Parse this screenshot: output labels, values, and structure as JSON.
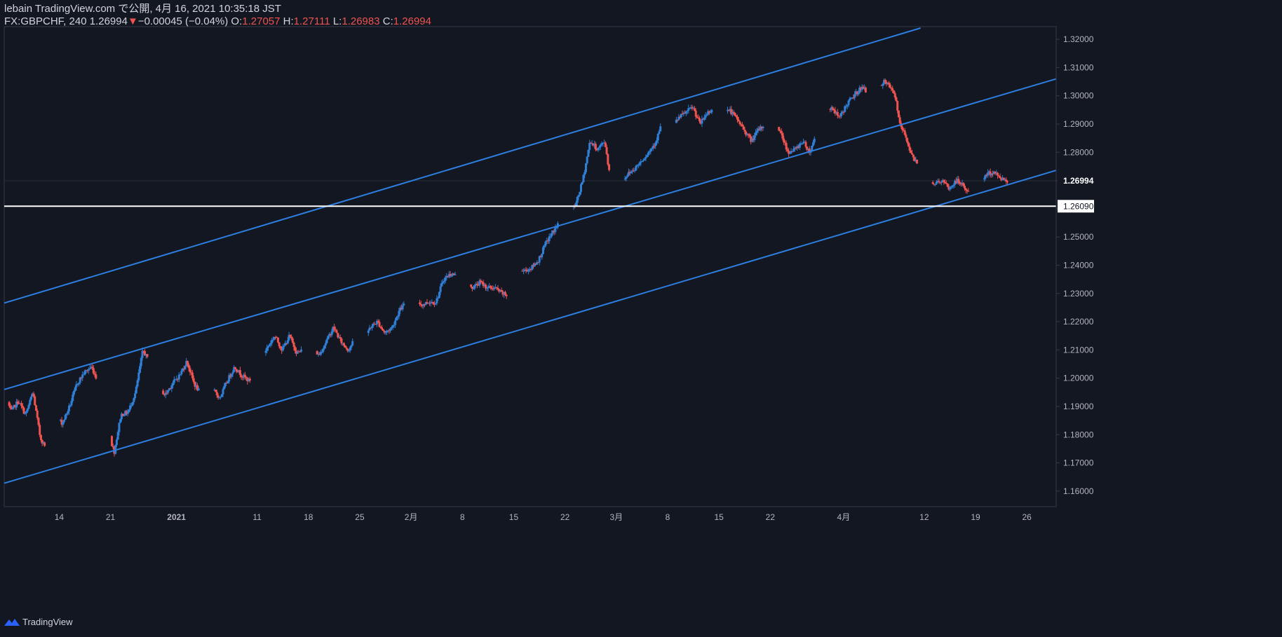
{
  "header": {
    "publish_line": "lebain TradingView.com で公開, 4月 16, 2021 10:35:18 JST",
    "symbol": "FX:GBPCHF, 240",
    "last": "1.26994",
    "change_arrow": "▼",
    "change": "−0.00045 (−0.04%)",
    "o_label": "O:",
    "o_value": "1.27057",
    "h_label": "H:",
    "h_value": "1.27111",
    "l_label": "L:",
    "l_value": "1.26983",
    "c_label": "C:",
    "c_value": "1.26994"
  },
  "footer": {
    "brand": "TradingView"
  },
  "colors": {
    "background": "#131722",
    "up": "#2f7fd6",
    "down": "#ef5350",
    "channel": "#2c7fe0",
    "level": "#ffffff",
    "text": "#d1d4dc",
    "axis_line": "#363a45"
  },
  "chart_data": {
    "type": "candlestick",
    "symbol": "FX:GBPCHF",
    "interval": "240",
    "ylim": [
      1.1545,
      1.3245
    ],
    "y_ticks": [
      1.16,
      1.17,
      1.18,
      1.19,
      1.2,
      1.21,
      1.22,
      1.23,
      1.24,
      1.25,
      1.26,
      1.27,
      1.28,
      1.29,
      1.3,
      1.31,
      1.32
    ],
    "y_tick_labels": [
      "1.16000",
      "1.17000",
      "1.18000",
      "1.19000",
      "1.20000",
      "1.21000",
      "1.22000",
      "1.23000",
      "1.24000",
      "1.25000",
      "1.26000",
      "1.27000",
      "1.28000",
      "1.29000",
      "1.30000",
      "1.31000",
      "1.32000"
    ],
    "x_ticks": [
      {
        "label": "14",
        "day": 14,
        "bold": false
      },
      {
        "label": "21",
        "day": 21,
        "bold": false
      },
      {
        "label": "2021",
        "day": 30,
        "bold": true
      },
      {
        "label": "11",
        "day": 41,
        "bold": false
      },
      {
        "label": "18",
        "day": 48,
        "bold": false
      },
      {
        "label": "25",
        "day": 55,
        "bold": false
      },
      {
        "label": "2月",
        "day": 62,
        "bold": false
      },
      {
        "label": "8",
        "day": 69,
        "bold": false
      },
      {
        "label": "15",
        "day": 76,
        "bold": false
      },
      {
        "label": "22",
        "day": 83,
        "bold": false
      },
      {
        "label": "3月",
        "day": 90,
        "bold": false
      },
      {
        "label": "8",
        "day": 97,
        "bold": false
      },
      {
        "label": "15",
        "day": 104,
        "bold": false
      },
      {
        "label": "22",
        "day": 111,
        "bold": false
      },
      {
        "label": "4月",
        "day": 121,
        "bold": false
      },
      {
        "label": "12",
        "day": 132,
        "bold": false
      },
      {
        "label": "19",
        "day": 139,
        "bold": false
      },
      {
        "label": "26",
        "day": 146,
        "bold": false
      }
    ],
    "x_range_days": [
      6.5,
      150.0
    ],
    "last_price": {
      "value": 1.26994,
      "label": "1.26994"
    },
    "horizontal_level": {
      "value": 1.2609,
      "label": "1.26090"
    },
    "channel_lines": [
      {
        "name": "upper",
        "from": {
          "day": 6.5,
          "price": 1.2266
        },
        "to": {
          "day": 131.5,
          "price": 1.324
        }
      },
      {
        "name": "middle",
        "from": {
          "day": 6.5,
          "price": 1.196
        },
        "to": {
          "day": 150.0,
          "price": 1.306
        }
      },
      {
        "name": "lower",
        "from": {
          "day": 6.5,
          "price": 1.1628
        },
        "to": {
          "day": 150.0,
          "price": 1.2736
        }
      }
    ],
    "path_points": [
      [
        6.6,
        1.196
      ],
      [
        7.5,
        1.188
      ],
      [
        8.5,
        1.192
      ],
      [
        9.5,
        1.187
      ],
      [
        10.5,
        1.195
      ],
      [
        11.5,
        1.179
      ],
      [
        12.5,
        1.174
      ],
      [
        13.5,
        1.187
      ],
      [
        14.5,
        1.184
      ],
      [
        15.5,
        1.19
      ],
      [
        16.5,
        1.198
      ],
      [
        17.5,
        1.202
      ],
      [
        18.5,
        1.204
      ],
      [
        19.5,
        1.198
      ],
      [
        20.5,
        1.19
      ],
      [
        21.3,
        1.176
      ],
      [
        21.6,
        1.174
      ],
      [
        22.5,
        1.187
      ],
      [
        23.5,
        1.188
      ],
      [
        24.5,
        1.195
      ],
      [
        25.5,
        1.21
      ],
      [
        26.5,
        1.205
      ],
      [
        27.5,
        1.198
      ],
      [
        28.5,
        1.194
      ],
      [
        29.5,
        1.198
      ],
      [
        30.5,
        1.201
      ],
      [
        31.5,
        1.206
      ],
      [
        32.5,
        1.198
      ],
      [
        33.5,
        1.194
      ],
      [
        35,
        1.196
      ],
      [
        36,
        1.193
      ],
      [
        37,
        1.199
      ],
      [
        38,
        1.204
      ],
      [
        39,
        1.201
      ],
      [
        40,
        1.199
      ],
      [
        41.5,
        1.206
      ],
      [
        42.5,
        1.211
      ],
      [
        43.5,
        1.215
      ],
      [
        44.5,
        1.21
      ],
      [
        45.5,
        1.215
      ],
      [
        46.5,
        1.209
      ],
      [
        47.5,
        1.21
      ],
      [
        48.5,
        1.212
      ],
      [
        49.5,
        1.208
      ],
      [
        50.5,
        1.213
      ],
      [
        51.5,
        1.218
      ],
      [
        52.5,
        1.213
      ],
      [
        53.5,
        1.21
      ],
      [
        54.5,
        1.214
      ],
      [
        55.5,
        1.213
      ],
      [
        56.5,
        1.218
      ],
      [
        57.5,
        1.22
      ],
      [
        58.5,
        1.216
      ],
      [
        59.5,
        1.218
      ],
      [
        60.5,
        1.224
      ],
      [
        61.5,
        1.227
      ],
      [
        62.5,
        1.228
      ],
      [
        63.5,
        1.226
      ],
      [
        64.5,
        1.227
      ],
      [
        65.5,
        1.227
      ],
      [
        66.5,
        1.235
      ],
      [
        67.5,
        1.237
      ],
      [
        68.5,
        1.236
      ],
      [
        69.5,
        1.235
      ],
      [
        70.5,
        1.232
      ],
      [
        71.5,
        1.234
      ],
      [
        72.5,
        1.232
      ],
      [
        73.5,
        1.232
      ],
      [
        74.5,
        1.23
      ],
      [
        75.5,
        1.229
      ],
      [
        76.5,
        1.238
      ],
      [
        77.5,
        1.238
      ],
      [
        78.5,
        1.239
      ],
      [
        79.5,
        1.242
      ],
      [
        80.5,
        1.248
      ],
      [
        81.5,
        1.252
      ],
      [
        82.5,
        1.256
      ],
      [
        83.5,
        1.26
      ],
      [
        84.5,
        1.261
      ],
      [
        85.5,
        1.27
      ],
      [
        86.5,
        1.284
      ],
      [
        87.5,
        1.281
      ],
      [
        88.5,
        1.284
      ],
      [
        89.3,
        1.27
      ],
      [
        89.7,
        1.262
      ],
      [
        90.5,
        1.268
      ],
      [
        91.5,
        1.272
      ],
      [
        92.5,
        1.274
      ],
      [
        93.5,
        1.277
      ],
      [
        94.5,
        1.28
      ],
      [
        95.5,
        1.284
      ],
      [
        96.5,
        1.292
      ],
      [
        97.5,
        1.288
      ],
      [
        98.5,
        1.292
      ],
      [
        99.5,
        1.294
      ],
      [
        100.5,
        1.296
      ],
      [
        101.5,
        1.29
      ],
      [
        102.5,
        1.294
      ],
      [
        103.5,
        1.296
      ],
      [
        104.5,
        1.294
      ],
      [
        105.5,
        1.295
      ],
      [
        106.5,
        1.292
      ],
      [
        107.5,
        1.288
      ],
      [
        108.5,
        1.284
      ],
      [
        109.5,
        1.288
      ],
      [
        110.5,
        1.29
      ],
      [
        111.5,
        1.292
      ],
      [
        112.5,
        1.287
      ],
      [
        113.5,
        1.28
      ],
      [
        114.5,
        1.281
      ],
      [
        115.5,
        1.284
      ],
      [
        116.5,
        1.28
      ],
      [
        117.5,
        1.288
      ],
      [
        118.5,
        1.294
      ],
      [
        119.5,
        1.296
      ],
      [
        120.5,
        1.292
      ],
      [
        121.5,
        1.297
      ],
      [
        122.5,
        1.3
      ],
      [
        123.5,
        1.303
      ],
      [
        124.5,
        1.301
      ],
      [
        125.5,
        1.302
      ],
      [
        126.5,
        1.305
      ],
      [
        127.5,
        1.303
      ],
      [
        128.3,
        1.298
      ],
      [
        128.7,
        1.29
      ],
      [
        129.5,
        1.286
      ],
      [
        130.5,
        1.278
      ],
      [
        131.5,
        1.276
      ],
      [
        132.5,
        1.27
      ],
      [
        133.5,
        1.269
      ],
      [
        134.5,
        1.27
      ],
      [
        135.5,
        1.267
      ],
      [
        136.5,
        1.27
      ],
      [
        137.5,
        1.268
      ],
      [
        138.5,
        1.264
      ],
      [
        139.5,
        1.268
      ],
      [
        140.5,
        1.272
      ],
      [
        141.5,
        1.273
      ],
      [
        142.5,
        1.271
      ],
      [
        143.3,
        1.27
      ]
    ]
  }
}
